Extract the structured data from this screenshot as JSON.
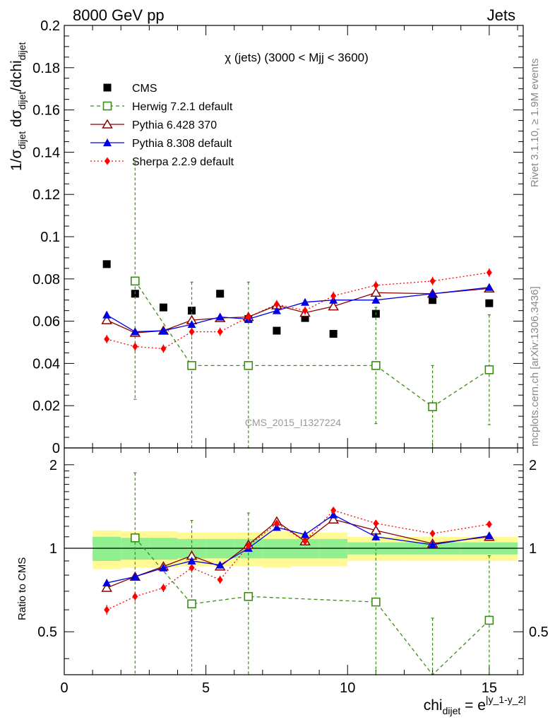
{
  "header": {
    "left": "8000 GeV pp",
    "right": "Jets",
    "side_rivet": "Rivet 3.1.10, ≥ 1.9M events",
    "side_site": "mcplots.cern.ch [arXiv:1306.3436]",
    "watermark": "CMS_2015_I1327224"
  },
  "chart_data": [
    {
      "type": "scatter",
      "title": "χ (jets) (3000 < Mjj < 3600)",
      "ylabel": "1/σ dijet dσ dijet / dchi dijet",
      "ylabel_parts": {
        "lead": "1/σ",
        "sub1": "dijet",
        "mid": " dσ",
        "sub2": "dijet",
        "tail": "/dchi",
        "sub3": "dijet"
      },
      "xlim": [
        0,
        16.2
      ],
      "ylim": [
        0,
        0.2
      ],
      "yticks": [
        0,
        0.02,
        0.04,
        0.06,
        0.08,
        0.1,
        0.12,
        0.14,
        0.16,
        0.18,
        0.2
      ],
      "ytick_labels": [
        "0",
        "0.02",
        "0.04",
        "0.06",
        "0.08",
        "0.1",
        "0.12",
        "0.14",
        "0.16",
        "0.18",
        "0.2"
      ],
      "legend_position": "top-left",
      "series": [
        {
          "name": "CMS",
          "color": "#000000",
          "marker": "square-filled",
          "line": "none",
          "x": [
            1.5,
            2.5,
            3.5,
            4.5,
            5.5,
            6.5,
            7.5,
            8.5,
            9.5,
            11,
            13,
            15
          ],
          "y": [
            0.087,
            0.073,
            0.0665,
            0.065,
            0.073,
            0.061,
            0.0555,
            0.0615,
            0.054,
            0.0635,
            0.07,
            0.0685
          ],
          "yerr": [
            0,
            0,
            0,
            0,
            0,
            0,
            0,
            0,
            0,
            0,
            0,
            0
          ]
        },
        {
          "name": "Herwig 7.2.1 default",
          "color": "#3a8d14",
          "marker": "square-open",
          "line": "dashed",
          "x": [
            2.5,
            4.5,
            6.5,
            11,
            13,
            15
          ],
          "y": [
            0.079,
            0.039,
            0.039,
            0.039,
            0.0195,
            0.037
          ],
          "yerr": [
            0.056,
            0.0395,
            0.0395,
            0.0275,
            0.0195,
            0.026
          ]
        },
        {
          "name": "Pythia 6.428 370",
          "color": "#8b0000",
          "marker": "triangle-open",
          "line": "solid",
          "x": [
            1.5,
            2.5,
            3.5,
            4.5,
            5.5,
            6.5,
            7.5,
            8.5,
            9.5,
            11,
            13,
            15
          ],
          "y": [
            0.0605,
            0.0545,
            0.0555,
            0.0605,
            0.0615,
            0.062,
            0.0675,
            0.064,
            0.067,
            0.0735,
            0.073,
            0.0755
          ],
          "yerr": [
            0.001,
            0.001,
            0.001,
            0.001,
            0.001,
            0.001,
            0.001,
            0.001,
            0.001,
            0.001,
            0.001,
            0.001
          ]
        },
        {
          "name": "Pythia 8.308 default",
          "color": "#0000e6",
          "marker": "triangle-filled",
          "line": "solid",
          "x": [
            1.5,
            2.5,
            3.5,
            4.5,
            5.5,
            6.5,
            7.5,
            8.5,
            9.5,
            11,
            13,
            15
          ],
          "y": [
            0.063,
            0.055,
            0.0555,
            0.0585,
            0.062,
            0.061,
            0.065,
            0.069,
            0.07,
            0.07,
            0.073,
            0.076
          ],
          "yerr": [
            0.0015,
            0.0012,
            0.0012,
            0.0012,
            0.0012,
            0.0012,
            0.0012,
            0.0012,
            0.0012,
            0.0012,
            0.0012,
            0.0012
          ]
        },
        {
          "name": "Sherpa 2.2.9 default",
          "color": "#ff0000",
          "marker": "diamond-filled",
          "line": "dotted",
          "x": [
            1.5,
            2.5,
            3.5,
            4.5,
            5.5,
            6.5,
            7.5,
            8.5,
            9.5,
            11,
            13,
            15
          ],
          "y": [
            0.0515,
            0.048,
            0.047,
            0.055,
            0.055,
            0.062,
            0.068,
            0.065,
            0.072,
            0.077,
            0.079,
            0.083
          ],
          "yerr": [
            0.002,
            0.002,
            0.002,
            0.002,
            0.002,
            0.002,
            0.002,
            0.002,
            0.002,
            0.002,
            0.002,
            0.002
          ]
        }
      ]
    },
    {
      "type": "scatter",
      "ylabel": "Ratio to CMS",
      "xlabel": "chi dijet = e |y_1-y_2|",
      "xlabel_parts": {
        "lead": "chi",
        "sub": "dijet",
        "mid": " = e",
        "sup": "|y_1-y_2|"
      },
      "xlim": [
        0,
        16.2
      ],
      "ylim": [
        0.35,
        2.3
      ],
      "xticks": [
        0,
        5,
        10,
        15
      ],
      "xtick_labels": [
        "0",
        "5",
        "10",
        "15"
      ],
      "yticks": [
        0.5,
        1,
        2
      ],
      "ytick_labels": [
        "0.5",
        "1",
        "2"
      ],
      "reference_line": 1,
      "bands": [
        {
          "xmin": 1,
          "xmax": 2,
          "inner": [
            0.9,
            1.1
          ],
          "outer": [
            0.84,
            1.16
          ]
        },
        {
          "xmin": 2,
          "xmax": 3,
          "inner": [
            0.91,
            1.09
          ],
          "outer": [
            0.85,
            1.15
          ]
        },
        {
          "xmin": 3,
          "xmax": 4,
          "inner": [
            0.91,
            1.09
          ],
          "outer": [
            0.85,
            1.15
          ]
        },
        {
          "xmin": 4,
          "xmax": 5,
          "inner": [
            0.92,
            1.08
          ],
          "outer": [
            0.86,
            1.14
          ]
        },
        {
          "xmin": 5,
          "xmax": 6,
          "inner": [
            0.92,
            1.08
          ],
          "outer": [
            0.86,
            1.14
          ]
        },
        {
          "xmin": 6,
          "xmax": 7,
          "inner": [
            0.92,
            1.08
          ],
          "outer": [
            0.86,
            1.14
          ]
        },
        {
          "xmin": 7,
          "xmax": 8,
          "inner": [
            0.92,
            1.08
          ],
          "outer": [
            0.85,
            1.15
          ]
        },
        {
          "xmin": 8,
          "xmax": 9,
          "inner": [
            0.92,
            1.08
          ],
          "outer": [
            0.86,
            1.14
          ]
        },
        {
          "xmin": 9,
          "xmax": 10,
          "inner": [
            0.92,
            1.08
          ],
          "outer": [
            0.86,
            1.14
          ]
        },
        {
          "xmin": 10,
          "xmax": 12,
          "inner": [
            0.95,
            1.05
          ],
          "outer": [
            0.9,
            1.1
          ]
        },
        {
          "xmin": 12,
          "xmax": 14,
          "inner": [
            0.95,
            1.05
          ],
          "outer": [
            0.9,
            1.1
          ]
        },
        {
          "xmin": 14,
          "xmax": 16,
          "inner": [
            0.95,
            1.05
          ],
          "outer": [
            0.9,
            1.1
          ]
        }
      ],
      "band_colors": {
        "inner": "#90f090",
        "outer": "#fffa96"
      },
      "series": [
        {
          "name": "Herwig 7.2.1 default",
          "color": "#3a8d14",
          "marker": "square-open",
          "line": "dashed",
          "x": [
            2.5,
            4.5,
            6.5,
            11,
            13,
            15
          ],
          "y": [
            1.09,
            0.63,
            0.67,
            0.64,
            0.28,
            0.55
          ],
          "yerr": [
            0.78,
            0.63,
            0.67,
            0.45,
            0.28,
            0.39
          ]
        },
        {
          "name": "Pythia 6.428 370",
          "color": "#8b0000",
          "marker": "triangle-open",
          "line": "solid",
          "x": [
            1.5,
            2.5,
            3.5,
            4.5,
            5.5,
            6.5,
            7.5,
            8.5,
            9.5,
            11,
            13,
            15
          ],
          "y": [
            0.72,
            0.79,
            0.86,
            0.94,
            0.86,
            1.03,
            1.25,
            1.06,
            1.27,
            1.16,
            1.04,
            1.1
          ],
          "yerr": [
            0.015,
            0.015,
            0.015,
            0.015,
            0.015,
            0.015,
            0.015,
            0.015,
            0.015,
            0.015,
            0.015,
            0.015
          ]
        },
        {
          "name": "Pythia 8.308 default",
          "color": "#0000e6",
          "marker": "triangle-filled",
          "line": "solid",
          "x": [
            1.5,
            2.5,
            3.5,
            4.5,
            5.5,
            6.5,
            7.5,
            8.5,
            9.5,
            11,
            13,
            15
          ],
          "y": [
            0.75,
            0.79,
            0.85,
            0.9,
            0.87,
            1.0,
            1.19,
            1.12,
            1.32,
            1.1,
            1.03,
            1.11
          ],
          "yerr": [
            0.015,
            0.015,
            0.015,
            0.015,
            0.015,
            0.015,
            0.015,
            0.015,
            0.015,
            0.015,
            0.015,
            0.015
          ]
        },
        {
          "name": "Sherpa 2.2.9 default",
          "color": "#ff0000",
          "marker": "diamond-filled",
          "line": "dotted",
          "x": [
            1.5,
            2.5,
            3.5,
            4.5,
            5.5,
            6.5,
            7.5,
            8.5,
            9.5,
            11,
            13,
            15
          ],
          "y": [
            0.6,
            0.67,
            0.72,
            0.85,
            0.77,
            1.02,
            1.23,
            1.06,
            1.37,
            1.23,
            1.13,
            1.22
          ],
          "yerr": [
            0.025,
            0.025,
            0.025,
            0.025,
            0.025,
            0.025,
            0.025,
            0.025,
            0.025,
            0.025,
            0.025,
            0.025
          ]
        }
      ]
    }
  ]
}
